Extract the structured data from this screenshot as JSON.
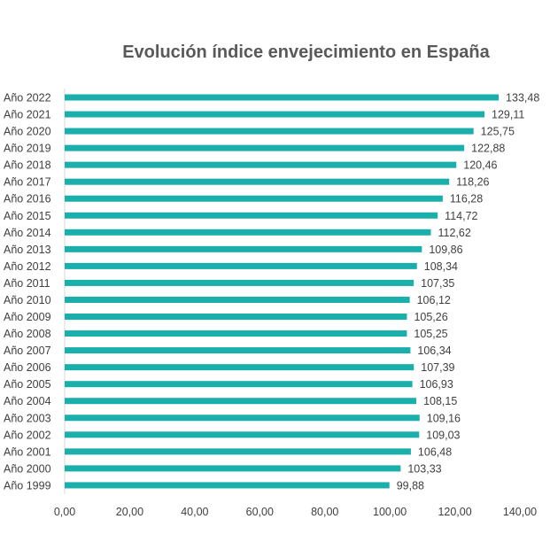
{
  "chart_data": {
    "type": "bar",
    "orientation": "horizontal",
    "title": "Evolución índice envejecimiento en España",
    "categories": [
      "Año 2022",
      "Año 2021",
      "Año 2020",
      "Año 2019",
      "Año 2018",
      "Año 2017",
      "Año 2016",
      "Año 2015",
      "Año 2014",
      "Año 2013",
      "Año 2012",
      "Año 2011",
      "Año 2010",
      "Año 2009",
      "Año 2008",
      "Año 2007",
      "Año 2006",
      "Año 2005",
      "Año 2004",
      "Año 2003",
      "Año 2002",
      "Año 2001",
      "Año 2000",
      "Año 1999"
    ],
    "values": [
      133.48,
      129.11,
      125.75,
      122.88,
      120.46,
      118.26,
      116.28,
      114.72,
      112.62,
      109.86,
      108.34,
      107.35,
      106.12,
      105.26,
      105.25,
      106.34,
      107.39,
      106.93,
      108.15,
      109.16,
      109.03,
      106.48,
      103.33,
      99.88
    ],
    "data_labels": [
      "133,48",
      "129,11",
      "125,75",
      "122,88",
      "120,46",
      "118,26",
      "116,28",
      "114,72",
      "112,62",
      "109,86",
      "108,34",
      "107,35",
      "106,12",
      "105,26",
      "105,25",
      "106,34",
      "107,39",
      "106,93",
      "108,15",
      "109,16",
      "109,03",
      "106,48",
      "103,33",
      "99,88"
    ],
    "xlim": [
      0,
      140
    ],
    "x_ticks": [
      0,
      20,
      40,
      60,
      80,
      100,
      120,
      140
    ],
    "x_tick_labels": [
      "0,00",
      "20,00",
      "40,00",
      "60,00",
      "80,00",
      "100,00",
      "120,00",
      "140,00"
    ],
    "grid": false,
    "legend": "none",
    "colors": {
      "bar": "#1aafab",
      "text": "#404040",
      "title": "#595959"
    }
  }
}
